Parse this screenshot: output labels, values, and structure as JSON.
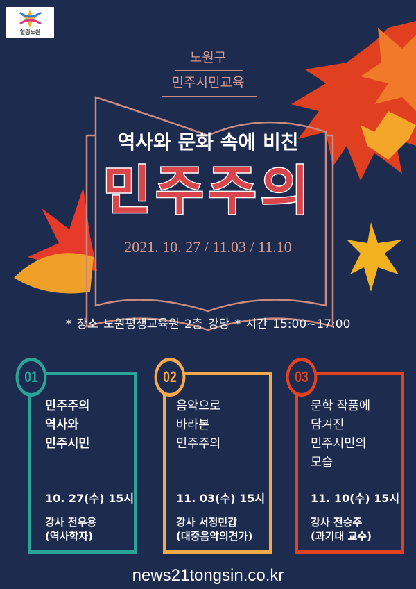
{
  "logo": {
    "text": "힐링노원"
  },
  "header": {
    "district": "노원구",
    "program": "민주시민교육"
  },
  "heading": "역사와 문화 속에 비친",
  "title": "민주주의",
  "dates": "2021. 10. 27 / 11.03 / 11.10",
  "info": "* 장소   노원평생교육원  2층 강당    * 시간  15:00~17:00",
  "sessions": [
    {
      "num": "01",
      "title": "민주주의\n역사와\n민주시민",
      "date": "10. 27(수) 15시",
      "lecturer": "강사  전우용\n (역사학자)",
      "color": "#2aa39a"
    },
    {
      "num": "02",
      "title": "음악으로\n바라본\n민주주의",
      "date": "11. 03(수) 15시",
      "lecturer": "강사  서정민갑\n(대중음악의견가)",
      "color": "#f5a94a"
    },
    {
      "num": "03",
      "title": "문학 작품에\n담겨진\n민주시민의\n모습",
      "date": "11. 10(수) 15시",
      "lecturer": "강사  전승주\n (과기대 교수)",
      "color": "#e2421f"
    }
  ],
  "url": "news21tongsin.co.kr",
  "colors": {
    "background": "#1d2b4f",
    "accent": "#d9454a",
    "rose_gold": "#d89a8e"
  }
}
